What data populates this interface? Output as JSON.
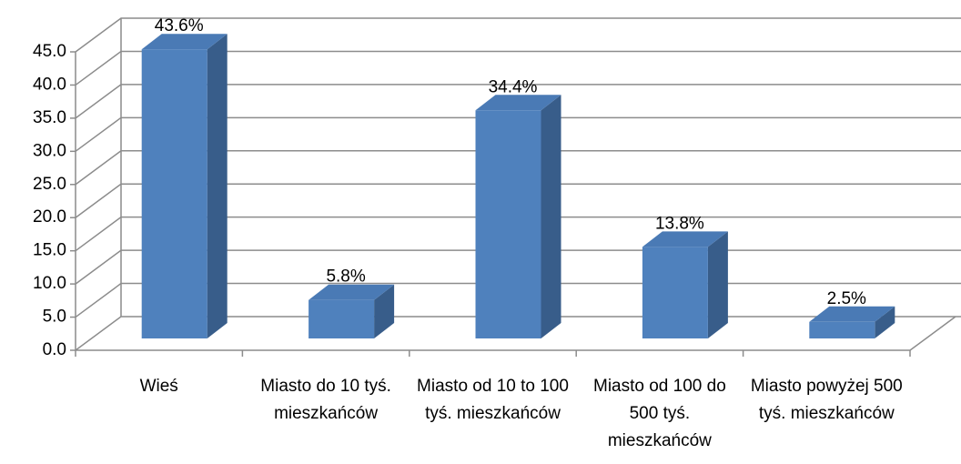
{
  "chart_data": {
    "type": "bar3d",
    "categories": [
      "Wieś",
      "Miasto do 10 tyś. mieszkańców",
      "Miasto od 10 to 100 tyś. mieszkańców",
      "Miasto od 100 do 500 tyś. mieszkańców",
      "Miasto powyżej 500 tyś. mieszkańców"
    ],
    "values": [
      43.6,
      5.8,
      34.4,
      13.8,
      2.5
    ],
    "value_labels": [
      "43.6%",
      "5.8%",
      "34.4%",
      "13.8%",
      "2.5%"
    ],
    "color": "#4f81bd",
    "ylim": [
      0,
      45
    ],
    "yticks": [
      {
        "value": 0,
        "label": "0.0"
      },
      {
        "value": 5,
        "label": "5.0"
      },
      {
        "value": 10,
        "label": "10.0"
      },
      {
        "value": 15,
        "label": "15.0"
      },
      {
        "value": 20,
        "label": "20.0"
      },
      {
        "value": 25,
        "label": "25.0"
      },
      {
        "value": 30,
        "label": "30.0"
      },
      {
        "value": 35,
        "label": "35.0"
      },
      {
        "value": 40,
        "label": "40.0"
      },
      {
        "value": 45,
        "label": "45.0"
      }
    ],
    "grid": true
  }
}
